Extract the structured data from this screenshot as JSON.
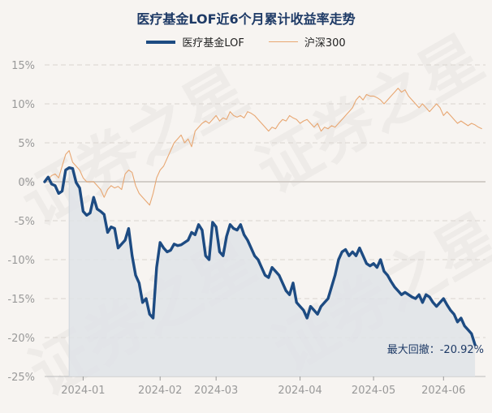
{
  "watermark": "证券之星",
  "chart_data": {
    "type": "line",
    "title": "医疗基金LOF近6个月累计收益率走势",
    "ylim": [
      -25,
      15
    ],
    "yticks": [
      15,
      10,
      5,
      0,
      -5,
      -10,
      -15,
      -20,
      -25
    ],
    "ytick_labels": [
      "15%",
      "10%",
      "5%",
      "0%",
      "-5%",
      "-10%",
      "-15%",
      "-20%",
      "-25%"
    ],
    "xlim": [
      0,
      126
    ],
    "xticks": [
      {
        "pos": 11,
        "label": "2024-01"
      },
      {
        "pos": 33,
        "label": "2024-02"
      },
      {
        "pos": 49,
        "label": "2024-03"
      },
      {
        "pos": 73,
        "label": "2024-04"
      },
      {
        "pos": 94,
        "label": "2024-05"
      },
      {
        "pos": 114,
        "label": "2024-06"
      }
    ],
    "shade_start": 7,
    "annotation": {
      "text": "最大回撤：-20.92%"
    },
    "series": [
      {
        "name": "医疗基金LOF",
        "color": "#1d4b82",
        "values": [
          0.0,
          0.6,
          -0.3,
          -0.5,
          -1.5,
          -1.2,
          1.5,
          1.8,
          1.7,
          -0.1,
          -0.8,
          -3.8,
          -4.3,
          -4.0,
          -2.0,
          -3.5,
          -3.8,
          -4.2,
          -6.5,
          -5.8,
          -6.0,
          -8.5,
          -8.0,
          -7.5,
          -6.0,
          -9.5,
          -12.0,
          -13.0,
          -15.5,
          -15.0,
          -17.0,
          -17.5,
          -11.0,
          -7.8,
          -8.5,
          -9.0,
          -8.8,
          -8.0,
          -8.2,
          -8.1,
          -7.8,
          -7.5,
          -6.5,
          -6.8,
          -5.5,
          -6.2,
          -9.5,
          -10.0,
          -5.2,
          -5.8,
          -9.0,
          -9.5,
          -7.0,
          -5.5,
          -6.0,
          -6.2,
          -5.5,
          -6.8,
          -7.5,
          -8.5,
          -9.5,
          -10.0,
          -11.0,
          -12.0,
          -12.3,
          -11.0,
          -11.5,
          -12.0,
          -13.0,
          -14.0,
          -14.5,
          -13.0,
          -15.5,
          -16.0,
          -16.5,
          -17.5,
          -16.0,
          -16.5,
          -17.0,
          -16.0,
          -15.5,
          -15.0,
          -13.5,
          -12.0,
          -10.0,
          -9.0,
          -8.7,
          -9.5,
          -9.0,
          -9.5,
          -8.5,
          -9.5,
          -10.5,
          -10.8,
          -10.5,
          -11.0,
          -10.0,
          -11.5,
          -12.0,
          -12.8,
          -13.5,
          -14.0,
          -14.5,
          -14.2,
          -14.5,
          -14.8,
          -15.0,
          -14.5,
          -15.5,
          -14.5,
          -14.8,
          -15.5,
          -16.0,
          -15.5,
          -15.0,
          -15.8,
          -16.5,
          -17.0,
          -18.0,
          -17.5,
          -18.5,
          -19.0,
          -19.5,
          -20.92
        ]
      },
      {
        "name": "沪深300",
        "color": "#e8a772",
        "values": [
          0.0,
          0.3,
          0.8,
          1.0,
          0.5,
          2.0,
          3.5,
          4.0,
          2.5,
          2.0,
          1.5,
          0.5,
          0.0,
          0.0,
          0.0,
          -0.5,
          -1.0,
          -2.0,
          -1.0,
          -0.5,
          -0.8,
          -0.6,
          -1.0,
          1.0,
          1.5,
          1.2,
          -0.5,
          -1.5,
          -2.0,
          -2.5,
          -3.0,
          -1.5,
          0.5,
          1.5,
          2.0,
          3.0,
          4.0,
          5.0,
          5.5,
          6.0,
          5.0,
          5.5,
          4.5,
          6.5,
          7.0,
          7.5,
          7.8,
          7.5,
          8.0,
          8.5,
          7.8,
          8.2,
          8.0,
          9.0,
          8.5,
          8.3,
          8.5,
          8.2,
          9.0,
          8.8,
          8.5,
          8.0,
          7.5,
          7.0,
          6.5,
          7.0,
          6.8,
          7.5,
          8.0,
          7.8,
          8.5,
          8.2,
          8.0,
          7.5,
          7.8,
          8.0,
          7.5,
          7.0,
          7.5,
          6.5,
          7.0,
          6.8,
          7.2,
          7.0,
          7.5,
          8.0,
          8.5,
          9.0,
          9.5,
          10.5,
          11.0,
          10.5,
          11.2,
          11.0,
          11.0,
          10.8,
          10.5,
          10.0,
          10.5,
          11.0,
          11.5,
          12.0,
          11.5,
          11.8,
          11.0,
          10.5,
          10.0,
          9.5,
          10.0,
          9.5,
          9.0,
          9.5,
          10.0,
          9.5,
          8.5,
          9.0,
          8.5,
          8.0,
          7.5,
          7.8,
          7.5,
          7.2,
          7.5,
          7.3,
          7.0,
          6.8
        ]
      }
    ]
  }
}
